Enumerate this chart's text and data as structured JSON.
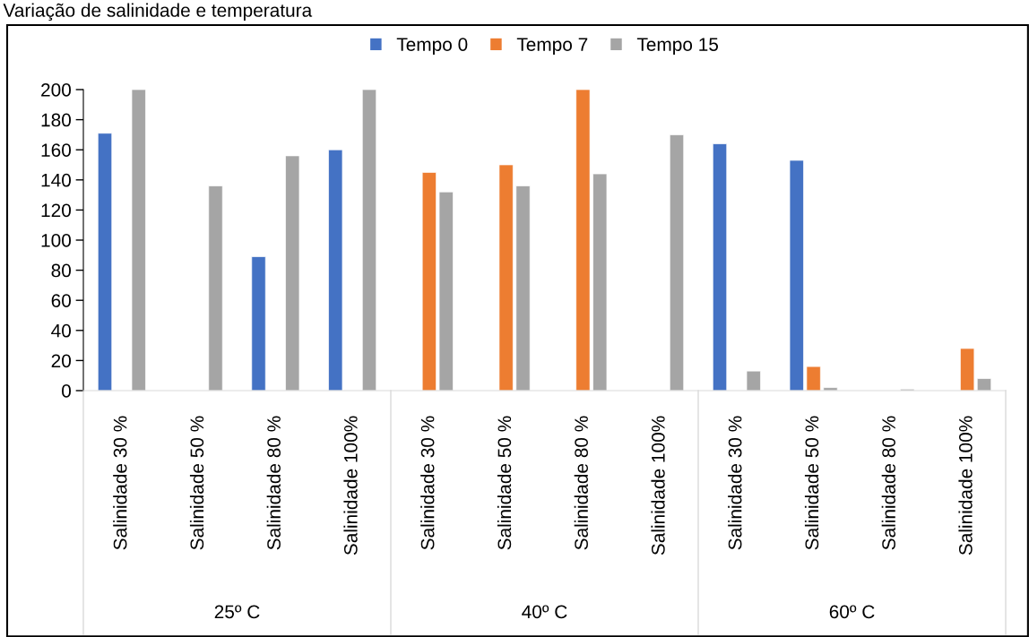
{
  "chart_data": {
    "type": "bar",
    "title": "Variação de salinidade e temperatura",
    "categories": [
      "Salinidade 30 %",
      "Salinidade 50 %",
      "Salinidade 80 %",
      "Salinidade 100%",
      "Salinidade 30 %",
      "Salinidade 50 %",
      "Salinidade 80 %",
      "Salinidade 100%",
      "Salinidade 30 %",
      "Salinidade 50 %",
      "Salinidade 80 %",
      "Salinidade 100%"
    ],
    "series": [
      {
        "name": "Tempo 0",
        "color": "#4472c4",
        "values": [
          171,
          null,
          89,
          160,
          null,
          null,
          null,
          null,
          164,
          153,
          null,
          null
        ]
      },
      {
        "name": "Tempo 7",
        "color": "#ed7d31",
        "values": [
          null,
          null,
          null,
          null,
          145,
          150,
          200,
          null,
          null,
          16,
          null,
          28
        ]
      },
      {
        "name": "Tempo 15",
        "color": "#a5a5a5",
        "values": [
          200,
          136,
          156,
          200,
          132,
          136,
          144,
          170,
          13,
          2,
          1,
          8
        ]
      }
    ],
    "annotations": [
      "25º C",
      "40º C",
      "60º C"
    ],
    "ylim": [
      0,
      200
    ],
    "yticks": [
      0,
      20,
      40,
      60,
      80,
      100,
      120,
      140,
      160,
      180,
      200
    ],
    "grid": false,
    "legend": "top"
  }
}
